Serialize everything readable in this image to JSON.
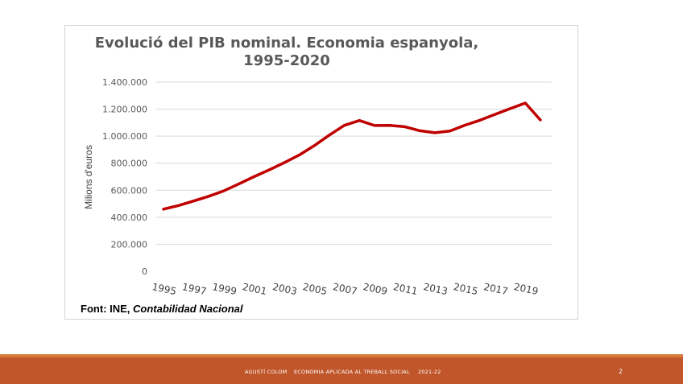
{
  "chart_data": {
    "type": "line",
    "title": "Evolució del PIB nominal. Economia espanyola,",
    "subtitle": "1995-2020",
    "xlabel": "",
    "ylabel": "Milions d'euros",
    "ylim": [
      0,
      1400000
    ],
    "y_ticks": [
      "0",
      "200.000",
      "400.000",
      "600.000",
      "800.000",
      "1.000.000",
      "1.200.000",
      "1.400.000"
    ],
    "x_ticks": [
      "1995",
      "1997",
      "1999",
      "2001",
      "2003",
      "2005",
      "2007",
      "2009",
      "2011",
      "2013",
      "2015",
      "2017",
      "2019"
    ],
    "x": [
      1995,
      1996,
      1997,
      1998,
      1999,
      2000,
      2001,
      2002,
      2003,
      2004,
      2005,
      2006,
      2007,
      2008,
      2009,
      2010,
      2011,
      2012,
      2013,
      2014,
      2015,
      2016,
      2017,
      2018,
      2019,
      2020
    ],
    "series": [
      {
        "name": "PIB nominal",
        "color": "#c00000",
        "values": [
          460000,
          487000,
          520000,
          555000,
          595000,
          647000,
          700000,
          750000,
          803000,
          860000,
          930000,
          1008000,
          1080000,
          1116000,
          1079000,
          1080000,
          1070000,
          1040000,
          1025000,
          1038000,
          1081000,
          1118000,
          1162000,
          1204000,
          1245000,
          1120000
        ]
      }
    ],
    "gridlines": true
  },
  "source": {
    "prefix": "Font: INE, ",
    "italic": "Contabilidad Nacional"
  },
  "footer": {
    "author": "AGUSTÍ COLOM",
    "course": "ECONOMIA APLICADA AL TREBALL SOCIAL",
    "year": "2021-22",
    "page": "2"
  },
  "colors": {
    "line": "#c00000",
    "footer_bar": "#c0562a",
    "footer_accent": "#d87a3a",
    "grid": "#d9d9d9"
  }
}
